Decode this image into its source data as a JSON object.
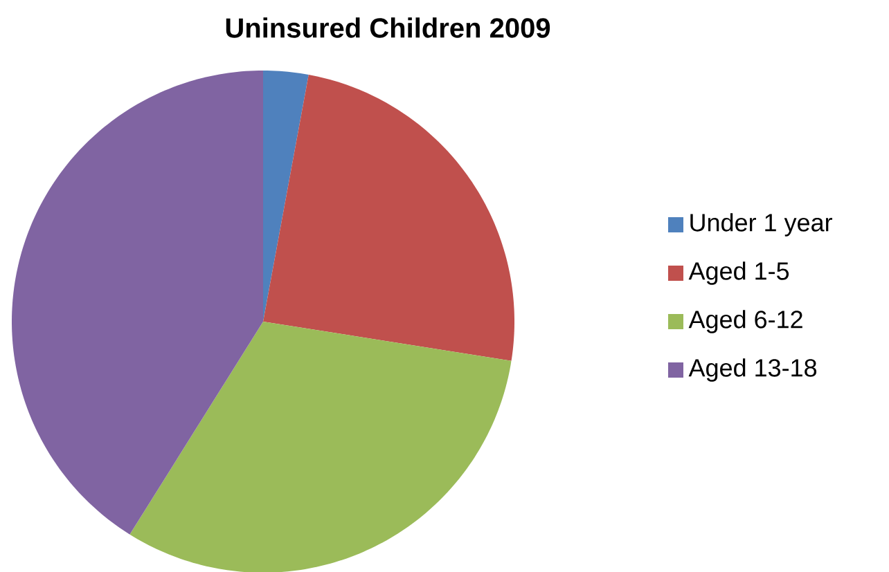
{
  "chart_data": {
    "type": "pie",
    "title": "Uninsured Children 2009",
    "categories": [
      "Under 1 year",
      "Aged 1-5",
      "Aged 6-12",
      "Aged 13-18"
    ],
    "values": [
      2.9,
      24.6,
      31.4,
      41.1
    ],
    "colors": [
      "#4f81bd",
      "#c0504d",
      "#9bbb59",
      "#8064a2"
    ],
    "legend": "right"
  }
}
